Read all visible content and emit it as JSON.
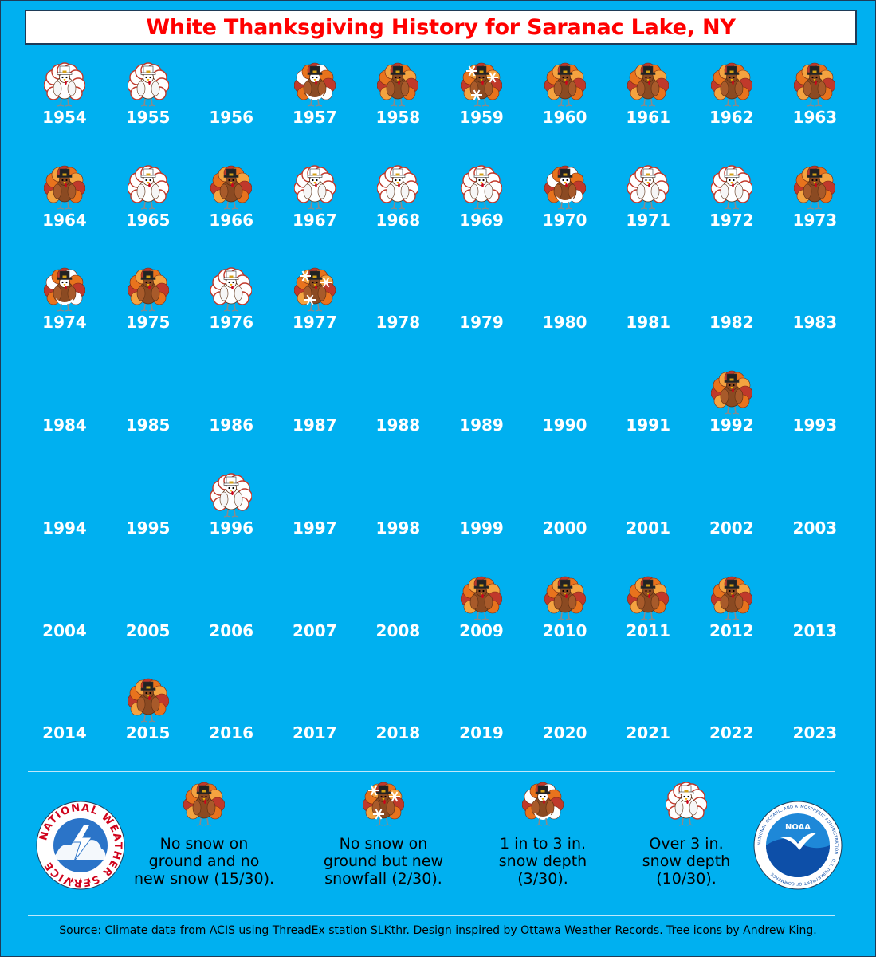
{
  "title": "White Thanksgiving History for Saranac Lake, NY",
  "icon_types": {
    "brown": "no-snow-turkey-icon",
    "snowfall": "snowfall-turkey-icon",
    "light": "light-snow-turkey-icon",
    "white": "deep-snow-turkey-icon",
    "none": "no-data"
  },
  "colors": {
    "background": "#00b0f0",
    "title": "#ff0000",
    "year_text": "#ffffff",
    "turkey_body": "#8b4a22",
    "turkey_feather_red": "#c0392b",
    "turkey_feather_orange": "#e8731d"
  },
  "years": [
    {
      "year": "1954",
      "category": "white"
    },
    {
      "year": "1955",
      "category": "white"
    },
    {
      "year": "1956",
      "category": "none"
    },
    {
      "year": "1957",
      "category": "light"
    },
    {
      "year": "1958",
      "category": "brown"
    },
    {
      "year": "1959",
      "category": "snowfall"
    },
    {
      "year": "1960",
      "category": "brown"
    },
    {
      "year": "1961",
      "category": "brown"
    },
    {
      "year": "1962",
      "category": "brown"
    },
    {
      "year": "1963",
      "category": "brown"
    },
    {
      "year": "1964",
      "category": "brown"
    },
    {
      "year": "1965",
      "category": "white"
    },
    {
      "year": "1966",
      "category": "brown"
    },
    {
      "year": "1967",
      "category": "white"
    },
    {
      "year": "1968",
      "category": "white"
    },
    {
      "year": "1969",
      "category": "white"
    },
    {
      "year": "1970",
      "category": "light"
    },
    {
      "year": "1971",
      "category": "white"
    },
    {
      "year": "1972",
      "category": "white"
    },
    {
      "year": "1973",
      "category": "brown"
    },
    {
      "year": "1974",
      "category": "light"
    },
    {
      "year": "1975",
      "category": "brown"
    },
    {
      "year": "1976",
      "category": "white"
    },
    {
      "year": "1977",
      "category": "snowfall"
    },
    {
      "year": "1978",
      "category": "none"
    },
    {
      "year": "1979",
      "category": "none"
    },
    {
      "year": "1980",
      "category": "none"
    },
    {
      "year": "1981",
      "category": "none"
    },
    {
      "year": "1982",
      "category": "none"
    },
    {
      "year": "1983",
      "category": "none"
    },
    {
      "year": "1984",
      "category": "none"
    },
    {
      "year": "1985",
      "category": "none"
    },
    {
      "year": "1986",
      "category": "none"
    },
    {
      "year": "1987",
      "category": "none"
    },
    {
      "year": "1988",
      "category": "none"
    },
    {
      "year": "1989",
      "category": "none"
    },
    {
      "year": "1990",
      "category": "none"
    },
    {
      "year": "1991",
      "category": "none"
    },
    {
      "year": "1992",
      "category": "brown"
    },
    {
      "year": "1993",
      "category": "none"
    },
    {
      "year": "1994",
      "category": "none"
    },
    {
      "year": "1995",
      "category": "none"
    },
    {
      "year": "1996",
      "category": "white"
    },
    {
      "year": "1997",
      "category": "none"
    },
    {
      "year": "1998",
      "category": "none"
    },
    {
      "year": "1999",
      "category": "none"
    },
    {
      "year": "2000",
      "category": "none"
    },
    {
      "year": "2001",
      "category": "none"
    },
    {
      "year": "2002",
      "category": "none"
    },
    {
      "year": "2003",
      "category": "none"
    },
    {
      "year": "2004",
      "category": "none"
    },
    {
      "year": "2005",
      "category": "none"
    },
    {
      "year": "2006",
      "category": "none"
    },
    {
      "year": "2007",
      "category": "none"
    },
    {
      "year": "2008",
      "category": "none"
    },
    {
      "year": "2009",
      "category": "brown"
    },
    {
      "year": "2010",
      "category": "brown"
    },
    {
      "year": "2011",
      "category": "brown"
    },
    {
      "year": "2012",
      "category": "brown"
    },
    {
      "year": "2013",
      "category": "none"
    },
    {
      "year": "2014",
      "category": "none"
    },
    {
      "year": "2015",
      "category": "brown"
    },
    {
      "year": "2016",
      "category": "none"
    },
    {
      "year": "2017",
      "category": "none"
    },
    {
      "year": "2018",
      "category": "none"
    },
    {
      "year": "2019",
      "category": "none"
    },
    {
      "year": "2020",
      "category": "none"
    },
    {
      "year": "2021",
      "category": "none"
    },
    {
      "year": "2022",
      "category": "none"
    },
    {
      "year": "2023",
      "category": "none"
    }
  ],
  "legend": [
    {
      "category": "brown",
      "lines": [
        "No snow on",
        "ground and no",
        "new snow (15/30)."
      ]
    },
    {
      "category": "snowfall",
      "lines": [
        "No snow on",
        "ground but new",
        "snowfall (2/30)."
      ]
    },
    {
      "category": "light",
      "lines": [
        "1 in to 3 in.",
        "snow depth",
        "(3/30)."
      ]
    },
    {
      "category": "white",
      "lines": [
        "Over 3 in.",
        "snow depth",
        "(10/30)."
      ]
    }
  ],
  "nws_logo_text": "NATIONAL WEATHER SERVICE",
  "noaa_logo_text": "NOAA",
  "noaa_ring_text": "NATIONAL OCEANIC AND ATMOSPHERIC ADMINISTRATION · U.S. DEPARTMENT OF COMMERCE",
  "source": "Source: Climate data from ACIS using ThreadEx station SLKthr. Design inspired by Ottawa Weather Records. Tree icons by Andrew King."
}
